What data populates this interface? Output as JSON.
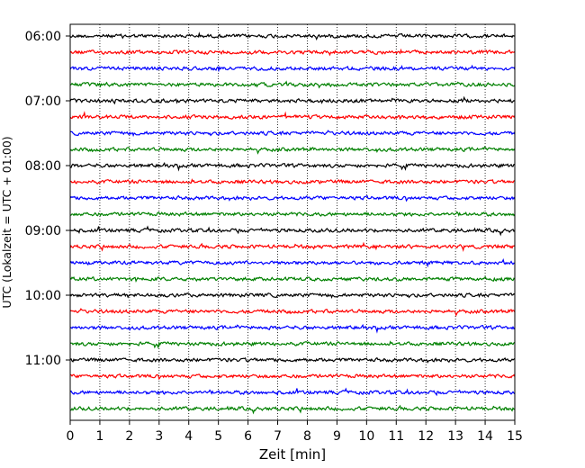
{
  "chart_data": {
    "type": "line",
    "title": "",
    "xlabel": "Zeit  [min]",
    "ylabel": "UTC (Lokalzeit = UTC + 01:00)",
    "xlim": [
      0,
      15
    ],
    "x_ticks": [
      0,
      1,
      2,
      3,
      4,
      5,
      6,
      7,
      8,
      9,
      10,
      11,
      12,
      13,
      14,
      15
    ],
    "x_tick_labels": [
      "0",
      "1",
      "2",
      "3",
      "4",
      "5",
      "6",
      "7",
      "8",
      "9",
      "10",
      "11",
      "12",
      "13",
      "14",
      "15"
    ],
    "y_tick_labels": [
      "06:00",
      "07:00",
      "08:00",
      "09:00",
      "10:00",
      "11:00"
    ],
    "x_grid": "dotted vertical lines at each minute",
    "trace_interval_min": 15,
    "trace_count": 24,
    "trace_start": "06:00",
    "trace_end": "11:45",
    "color_cycle": [
      "#000000",
      "#ff0000",
      "#0000ff",
      "#008000"
    ],
    "series": [
      {
        "start": "06:00",
        "color": "#000000"
      },
      {
        "start": "06:15",
        "color": "#ff0000"
      },
      {
        "start": "06:30",
        "color": "#0000ff"
      },
      {
        "start": "06:45",
        "color": "#008000"
      },
      {
        "start": "07:00",
        "color": "#000000"
      },
      {
        "start": "07:15",
        "color": "#ff0000"
      },
      {
        "start": "07:30",
        "color": "#0000ff"
      },
      {
        "start": "07:45",
        "color": "#008000"
      },
      {
        "start": "08:00",
        "color": "#000000"
      },
      {
        "start": "08:15",
        "color": "#ff0000"
      },
      {
        "start": "08:30",
        "color": "#0000ff"
      },
      {
        "start": "08:45",
        "color": "#008000"
      },
      {
        "start": "09:00",
        "color": "#000000"
      },
      {
        "start": "09:15",
        "color": "#ff0000"
      },
      {
        "start": "09:30",
        "color": "#0000ff"
      },
      {
        "start": "09:45",
        "color": "#008000"
      },
      {
        "start": "10:00",
        "color": "#000000"
      },
      {
        "start": "10:15",
        "color": "#ff0000"
      },
      {
        "start": "10:30",
        "color": "#0000ff"
      },
      {
        "start": "10:45",
        "color": "#008000"
      },
      {
        "start": "11:00",
        "color": "#000000"
      },
      {
        "start": "11:15",
        "color": "#ff0000"
      },
      {
        "start": "11:30",
        "color": "#0000ff"
      },
      {
        "start": "11:45",
        "color": "#008000"
      }
    ]
  }
}
